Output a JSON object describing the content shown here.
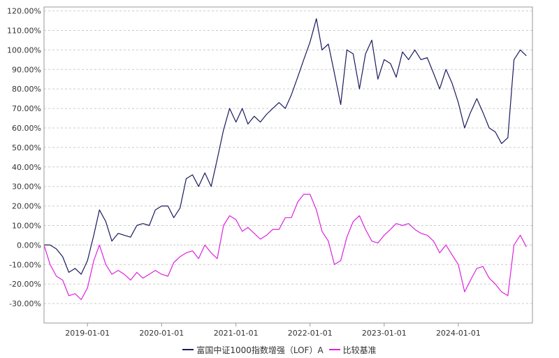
{
  "chart_data": {
    "type": "line",
    "title": "",
    "xlabel": "",
    "ylabel": "",
    "xlim": [
      "2018-06-01",
      "2024-12-31"
    ],
    "ylim": [
      -0.4,
      1.22
    ],
    "y_ticks": [
      -0.3,
      -0.2,
      -0.1,
      0.0,
      0.1,
      0.2,
      0.3,
      0.4,
      0.5,
      0.6,
      0.7,
      0.8,
      0.9,
      1.0,
      1.1,
      1.2
    ],
    "y_tick_labels": [
      "-30.00%",
      "-20.00%",
      "-10.00%",
      "0.00%",
      "10.00%",
      "20.00%",
      "30.00%",
      "40.00%",
      "50.00%",
      "60.00%",
      "70.00%",
      "80.00%",
      "90.00%",
      "100.00%",
      "110.00%",
      "120.00%"
    ],
    "x_ticks": [
      "2019-01-01",
      "2020-01-01",
      "2021-01-01",
      "2022-01-01",
      "2023-01-01",
      "2024-01-01"
    ],
    "x_tick_labels": [
      "2019-01-01",
      "2020-01-01",
      "2021-01-01",
      "2022-01-01",
      "2023-01-01",
      "2024-01-01"
    ],
    "grid": true,
    "legend_position": "bottom-center",
    "series": [
      {
        "name": "富国中证1000指数增强（LOF）A",
        "color": "#1a1a5e",
        "x": [
          "2018-06-01",
          "2018-07-01",
          "2018-08-01",
          "2018-09-01",
          "2018-10-01",
          "2018-11-01",
          "2018-12-01",
          "2019-01-01",
          "2019-02-01",
          "2019-03-01",
          "2019-04-01",
          "2019-05-01",
          "2019-06-01",
          "2019-07-01",
          "2019-08-01",
          "2019-09-01",
          "2019-10-01",
          "2019-11-01",
          "2019-12-01",
          "2020-01-01",
          "2020-02-01",
          "2020-03-01",
          "2020-04-01",
          "2020-05-01",
          "2020-06-01",
          "2020-07-01",
          "2020-08-01",
          "2020-09-01",
          "2020-10-01",
          "2020-11-01",
          "2020-12-01",
          "2021-01-01",
          "2021-02-01",
          "2021-03-01",
          "2021-04-01",
          "2021-05-01",
          "2021-06-01",
          "2021-07-01",
          "2021-08-01",
          "2021-09-01",
          "2021-10-01",
          "2021-11-01",
          "2021-12-01",
          "2022-01-01",
          "2022-02-01",
          "2022-03-01",
          "2022-04-01",
          "2022-05-01",
          "2022-06-01",
          "2022-07-01",
          "2022-08-01",
          "2022-09-01",
          "2022-10-01",
          "2022-11-01",
          "2022-12-01",
          "2023-01-01",
          "2023-02-01",
          "2023-03-01",
          "2023-04-01",
          "2023-05-01",
          "2023-06-01",
          "2023-07-01",
          "2023-08-01",
          "2023-09-01",
          "2023-10-01",
          "2023-11-01",
          "2023-12-01",
          "2024-01-01",
          "2024-02-01",
          "2024-03-01",
          "2024-04-01",
          "2024-05-01",
          "2024-06-01",
          "2024-07-01",
          "2024-08-01",
          "2024-09-01",
          "2024-10-01",
          "2024-11-01",
          "2024-12-01"
        ],
        "y": [
          0.0,
          0.0,
          -0.02,
          -0.06,
          -0.14,
          -0.12,
          -0.15,
          -0.08,
          0.05,
          0.18,
          0.12,
          0.02,
          0.06,
          0.05,
          0.04,
          0.1,
          0.11,
          0.1,
          0.18,
          0.2,
          0.2,
          0.14,
          0.19,
          0.34,
          0.36,
          0.3,
          0.37,
          0.3,
          0.44,
          0.59,
          0.7,
          0.63,
          0.7,
          0.62,
          0.66,
          0.63,
          0.67,
          0.7,
          0.73,
          0.7,
          0.77,
          0.86,
          0.95,
          1.04,
          1.16,
          1.0,
          1.03,
          0.88,
          0.72,
          1.0,
          0.98,
          0.8,
          0.98,
          1.05,
          0.85,
          0.95,
          0.93,
          0.86,
          0.99,
          0.95,
          1.0,
          0.95,
          0.96,
          0.88,
          0.8,
          0.9,
          0.83,
          0.73,
          0.6,
          0.68,
          0.75,
          0.68,
          0.6,
          0.58,
          0.52,
          0.55,
          0.95,
          1.0,
          0.97
        ]
      },
      {
        "name": "比较基准",
        "color": "#dd22dd",
        "x": [
          "2018-06-01",
          "2018-07-01",
          "2018-08-01",
          "2018-09-01",
          "2018-10-01",
          "2018-11-01",
          "2018-12-01",
          "2019-01-01",
          "2019-02-01",
          "2019-03-01",
          "2019-04-01",
          "2019-05-01",
          "2019-06-01",
          "2019-07-01",
          "2019-08-01",
          "2019-09-01",
          "2019-10-01",
          "2019-11-01",
          "2019-12-01",
          "2020-01-01",
          "2020-02-01",
          "2020-03-01",
          "2020-04-01",
          "2020-05-01",
          "2020-06-01",
          "2020-07-01",
          "2020-08-01",
          "2020-09-01",
          "2020-10-01",
          "2020-11-01",
          "2020-12-01",
          "2021-01-01",
          "2021-02-01",
          "2021-03-01",
          "2021-04-01",
          "2021-05-01",
          "2021-06-01",
          "2021-07-01",
          "2021-08-01",
          "2021-09-01",
          "2021-10-01",
          "2021-11-01",
          "2021-12-01",
          "2022-01-01",
          "2022-02-01",
          "2022-03-01",
          "2022-04-01",
          "2022-05-01",
          "2022-06-01",
          "2022-07-01",
          "2022-08-01",
          "2022-09-01",
          "2022-10-01",
          "2022-11-01",
          "2022-12-01",
          "2023-01-01",
          "2023-02-01",
          "2023-03-01",
          "2023-04-01",
          "2023-05-01",
          "2023-06-01",
          "2023-07-01",
          "2023-08-01",
          "2023-09-01",
          "2023-10-01",
          "2023-11-01",
          "2023-12-01",
          "2024-01-01",
          "2024-02-01",
          "2024-03-01",
          "2024-04-01",
          "2024-05-01",
          "2024-06-01",
          "2024-07-01",
          "2024-08-01",
          "2024-09-01",
          "2024-10-01",
          "2024-11-01",
          "2024-12-01"
        ],
        "y": [
          0.0,
          -0.1,
          -0.16,
          -0.18,
          -0.26,
          -0.25,
          -0.28,
          -0.22,
          -0.08,
          0.0,
          -0.1,
          -0.15,
          -0.13,
          -0.15,
          -0.18,
          -0.14,
          -0.17,
          -0.15,
          -0.13,
          -0.15,
          -0.16,
          -0.09,
          -0.06,
          -0.04,
          -0.03,
          -0.07,
          0.0,
          -0.04,
          -0.07,
          0.1,
          0.15,
          0.13,
          0.07,
          0.09,
          0.06,
          0.03,
          0.05,
          0.08,
          0.08,
          0.14,
          0.14,
          0.22,
          0.26,
          0.26,
          0.18,
          0.07,
          0.02,
          -0.1,
          -0.08,
          0.04,
          0.12,
          0.15,
          0.08,
          0.02,
          0.01,
          0.05,
          0.08,
          0.11,
          0.1,
          0.11,
          0.08,
          0.06,
          0.05,
          0.02,
          -0.04,
          0.0,
          -0.05,
          -0.1,
          -0.24,
          -0.18,
          -0.12,
          -0.11,
          -0.17,
          -0.2,
          -0.24,
          -0.26,
          0.0,
          0.05,
          -0.01
        ]
      }
    ]
  }
}
